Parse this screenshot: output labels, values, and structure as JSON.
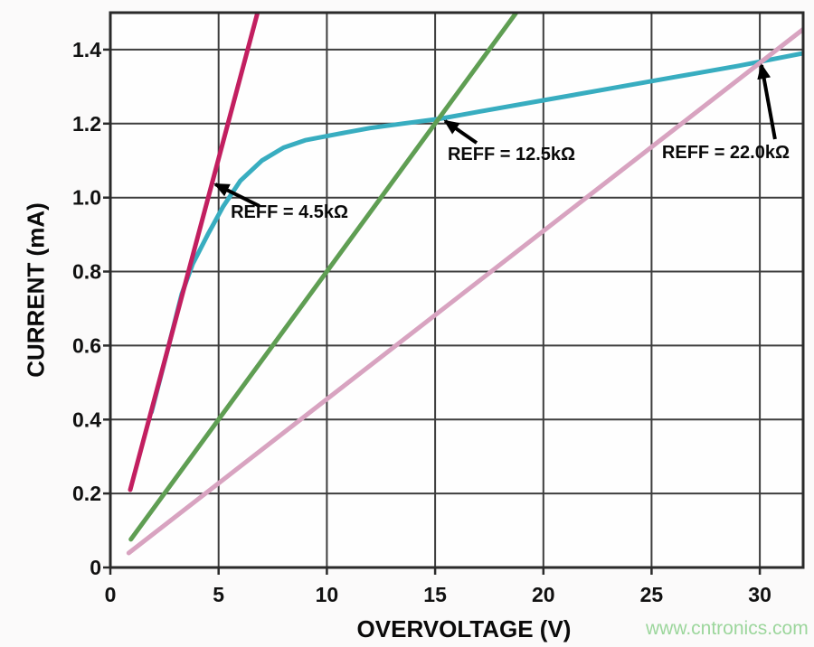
{
  "watermark": {
    "text": "www.cntronics.com",
    "color": "#9cd69c"
  },
  "chart_data": {
    "type": "line",
    "title": "",
    "xlabel": "OVERVOLTAGE (V)",
    "ylabel": "CURRENT (mA)",
    "xlim": [
      0,
      32
    ],
    "ylim": [
      0,
      1.5
    ],
    "xticks": [
      0,
      5,
      10,
      15,
      20,
      25,
      30
    ],
    "xtick_labels": [
      "0",
      "5",
      "10",
      "15",
      "20",
      "25",
      "30"
    ],
    "yticks": [
      0,
      0.2,
      0.4,
      0.6,
      0.8,
      1.0,
      1.2,
      1.4
    ],
    "ytick_labels": [
      "0",
      "0.2",
      "0.4",
      "0.6",
      "0.8",
      "1.0",
      "1.2",
      "1.4"
    ],
    "grid": true,
    "legend": "none (labels annotated on plot)",
    "colors": {
      "grid": "#3d3d3d",
      "border": "#2a2a2a",
      "plot_bg": "#fefefe",
      "annotation_arrow": "#000000"
    },
    "series": [
      {
        "name": "device-iv-curve",
        "label": "",
        "color": "#38adc0",
        "points": [
          [
            1.9,
            0.42
          ],
          [
            2.7,
            0.6
          ],
          [
            3.3,
            0.74
          ],
          [
            3.8,
            0.82
          ],
          [
            4.5,
            0.9
          ],
          [
            5.2,
            0.975
          ],
          [
            6.0,
            1.045
          ],
          [
            7.0,
            1.1
          ],
          [
            8.0,
            1.135
          ],
          [
            9.0,
            1.155
          ],
          [
            10.5,
            1.172
          ],
          [
            12.0,
            1.188
          ],
          [
            13.5,
            1.2
          ],
          [
            15.2,
            1.213
          ],
          [
            17.0,
            1.232
          ],
          [
            20.0,
            1.263
          ],
          [
            23.0,
            1.294
          ],
          [
            26.0,
            1.325
          ],
          [
            29.0,
            1.356
          ],
          [
            32.0,
            1.39
          ]
        ]
      },
      {
        "name": "reff-12.5k-loadline",
        "label": "REFF = 12.5kΩ",
        "color": "#5f9e53",
        "points": [
          [
            0.95,
            0.076
          ],
          [
            18.9,
            1.512
          ]
        ]
      },
      {
        "name": "reff-22.0k-loadline",
        "label": "REFF = 22.0kΩ",
        "color": "#d8a3c0",
        "points": [
          [
            0.85,
            0.039
          ],
          [
            32.0,
            1.455
          ]
        ]
      },
      {
        "name": "reff-4.5k-loadline",
        "label": "REFF = 4.5kΩ",
        "color": "#c21f60",
        "points": [
          [
            0.92,
            0.21
          ],
          [
            6.82,
            1.505
          ]
        ]
      }
    ],
    "annotations": [
      {
        "label": "REFF = 4.5kΩ",
        "text_anchor": [
          5.56,
          0.987
        ],
        "arrow_tail": [
          6.89,
          0.977
        ],
        "arrow_tip": [
          4.85,
          1.036
        ]
      },
      {
        "label": "REFF = 12.5kΩ",
        "text_anchor": [
          15.58,
          1.143
        ],
        "arrow_tail": [
          16.92,
          1.148
        ],
        "arrow_tip": [
          15.46,
          1.207
        ]
      },
      {
        "label": "REFF = 22.0kΩ",
        "text_anchor": [
          25.48,
          1.148
        ],
        "arrow_tail": [
          30.7,
          1.158
        ],
        "arrow_tip": [
          30.08,
          1.358
        ]
      }
    ]
  }
}
